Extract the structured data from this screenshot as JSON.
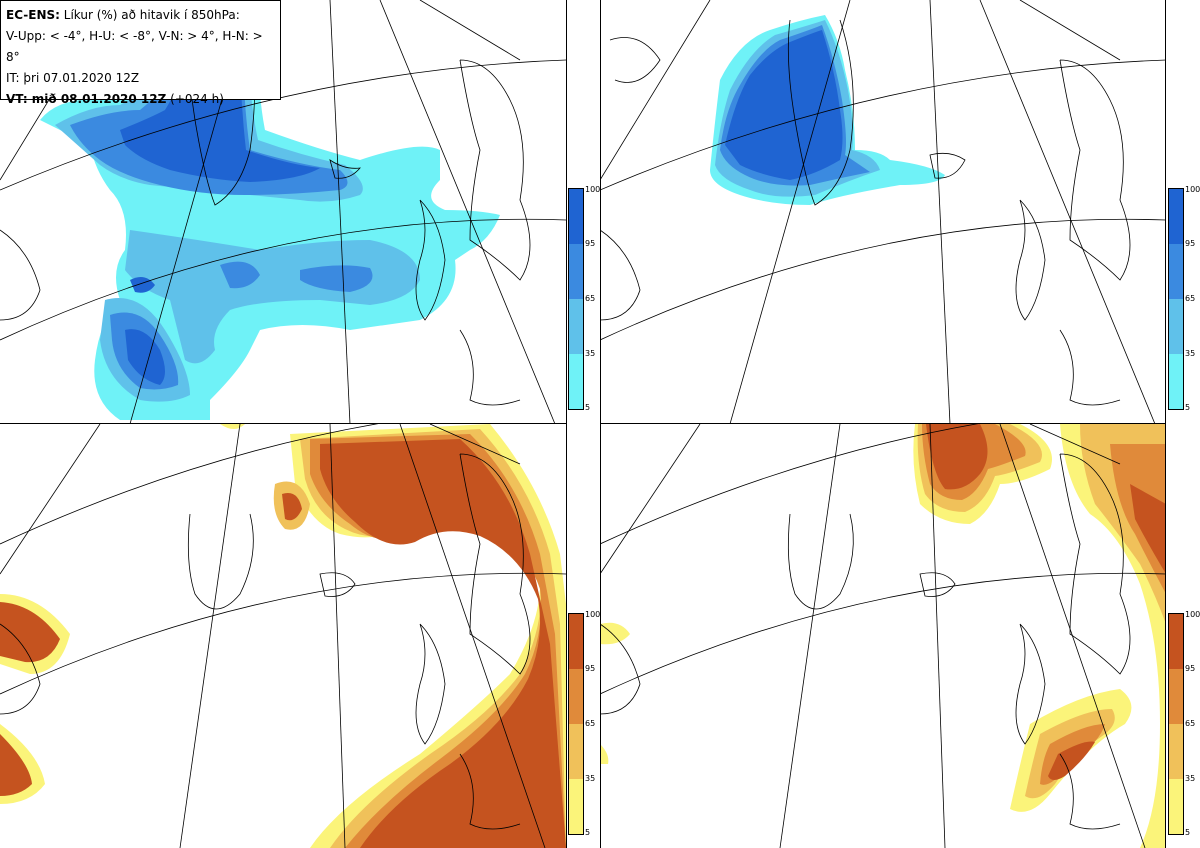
{
  "infobox": {
    "line1_bold": "EC-ENS:",
    "line1_rest": " Líkur (%) að hitavik í 850hPa:",
    "line2": "V-Upp: < -4°, H-U: < -8°, V-N: > 4°, H-N: > 8°",
    "line3": "IT: þri 07.01.2020 12Z",
    "line4_bold": "VT: mið 08.01.2020 12Z",
    "line4_rest": " (+024 h)"
  },
  "colorbar_blue": {
    "labels": [
      "100",
      "95",
      "65",
      "35",
      "5"
    ],
    "colors": [
      "#1f64d2",
      "#3b8ae0",
      "#5fc1ea",
      "#6ff2f7"
    ]
  },
  "colorbar_orange": {
    "labels": [
      "100",
      "95",
      "65",
      "35",
      "5"
    ],
    "colors": [
      "#c5531f",
      "#e08a3a",
      "#f0c15a",
      "#fbf47a"
    ]
  },
  "colors": {
    "coast": "#000000",
    "grid": "#000000"
  }
}
